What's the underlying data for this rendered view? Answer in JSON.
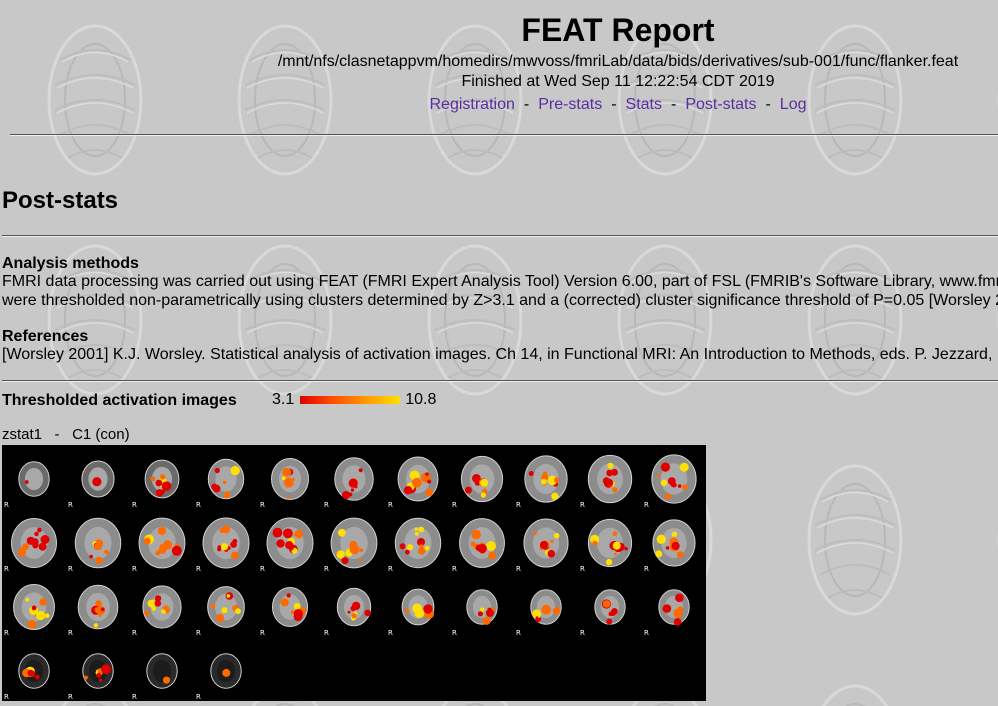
{
  "header": {
    "title": "FEAT Report",
    "path": "/mnt/nfs/clasnetappvm/homedirs/mwvoss/fmriLab/data/bids/derivatives/sub-001/func/flanker.feat",
    "finished": "Finished at Wed Sep 11 12:22:54 CDT 2019",
    "nav": [
      "Registration",
      "Pre-stats",
      "Stats",
      "Post-stats",
      "Log"
    ],
    "nav_separator": "-"
  },
  "section_title": "Post-stats",
  "analysis_methods": {
    "heading": "Analysis methods",
    "line1": "FMRI data processing was carried out using FEAT (FMRI Expert Analysis Tool) Version 6.00, part of FSL (FMRIB's Software Library, www.fmr",
    "line2": "were thresholded non-parametrically using clusters determined by Z>3.1 and a (corrected) cluster significance threshold of P=0.05 [Worsley 2"
  },
  "references": {
    "heading": "References",
    "line1": "[Worsley 2001] K.J. Worsley. Statistical analysis of activation images. Ch 14, in Functional MRI: An Introduction to Methods, eds. P. Jezzard, P"
  },
  "thresholded": {
    "heading": "Thresholded activation images",
    "colorbar_min": "3.1",
    "colorbar_max": "10.8"
  },
  "zstat": {
    "name": "zstat1",
    "separator": "-",
    "contrast": "C1 (con)",
    "slice_marker": "R",
    "slice_count": 37
  },
  "colors": {
    "link": "#5a2ea0",
    "background": "#c8c8c8",
    "activation_low": "#e00000",
    "activation_high": "#ffe000"
  }
}
